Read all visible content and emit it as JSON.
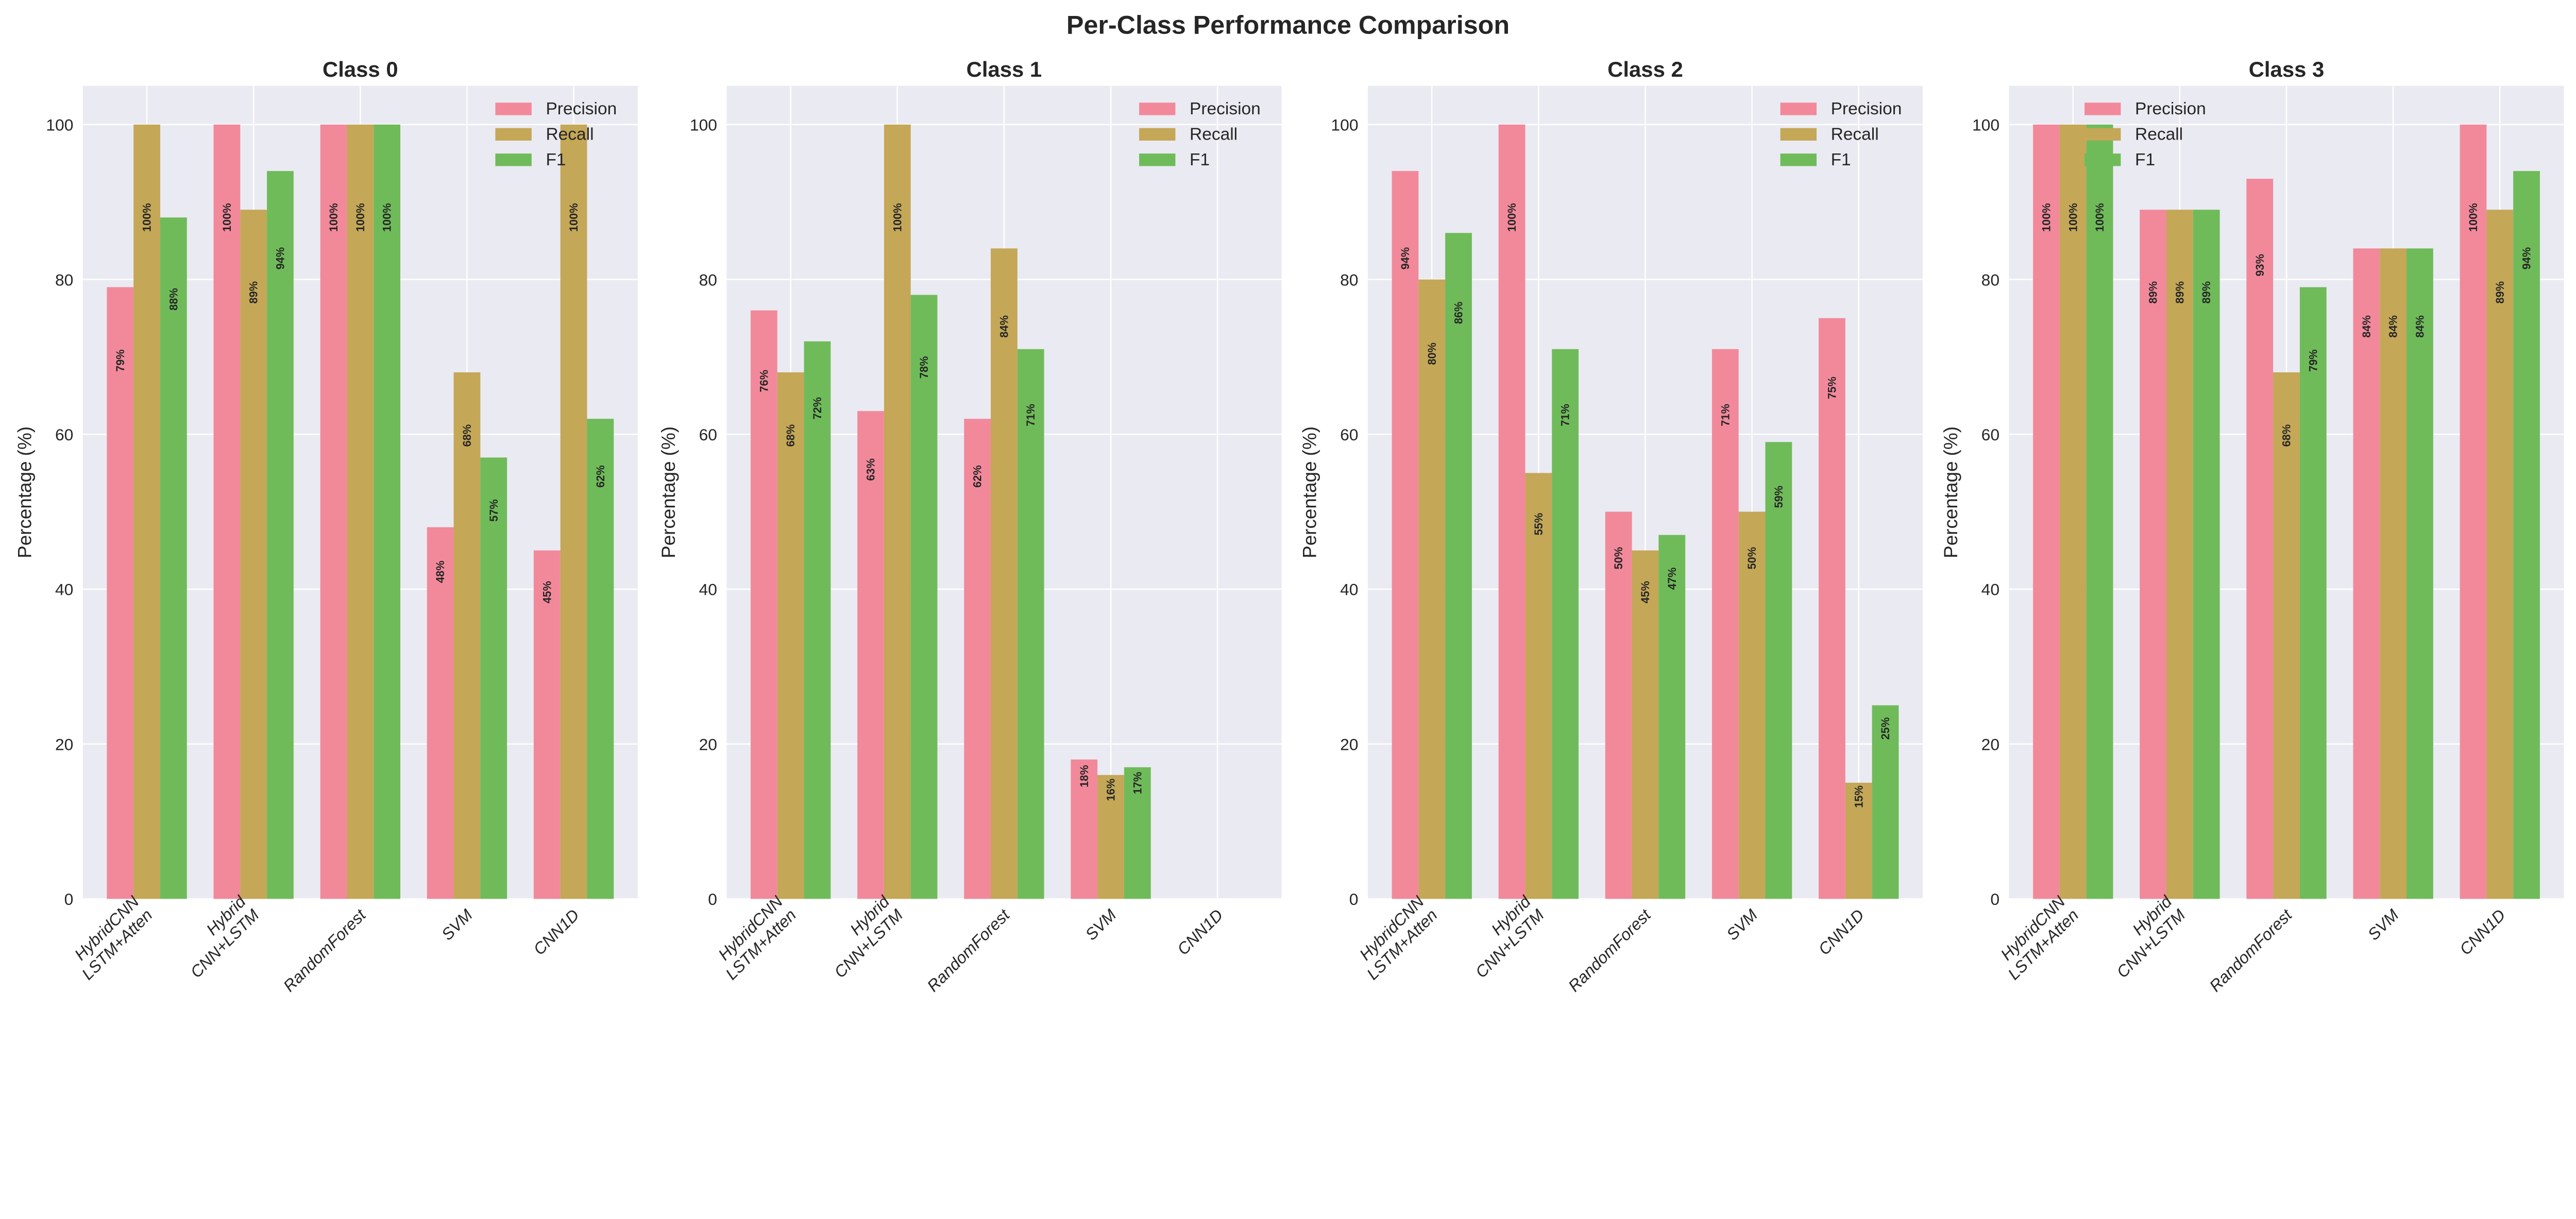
{
  "title": "Per-Class Performance Comparison",
  "colors": {
    "Precision": "#f2899b",
    "Recall": "#c4a757",
    "F1": "#6fbb5a",
    "background": "#eaeaf2",
    "grid": "#ffffff"
  },
  "chart_data": [
    {
      "type": "bar",
      "title": "Class 0",
      "xlabel": "",
      "ylabel": "Percentage (%)",
      "ylim": [
        0,
        105
      ],
      "yticks": [
        "0",
        "20",
        "40",
        "60",
        "80",
        "100"
      ],
      "grid": true,
      "legend": "top-right",
      "categories": [
        "HybridCNN\nLSTM+Atten",
        "Hybrid\nCNN+LSTM",
        "RandomForest",
        "SVM",
        "CNN1D"
      ],
      "series": [
        {
          "name": "Precision",
          "values": [
            79,
            100,
            100,
            48,
            45
          ]
        },
        {
          "name": "Recall",
          "values": [
            100,
            89,
            100,
            68,
            100
          ]
        },
        {
          "name": "F1",
          "values": [
            88,
            94,
            100,
            57,
            62
          ]
        }
      ]
    },
    {
      "type": "bar",
      "title": "Class 1",
      "xlabel": "",
      "ylabel": "Percentage (%)",
      "ylim": [
        0,
        105
      ],
      "yticks": [
        "0",
        "20",
        "40",
        "60",
        "80",
        "100"
      ],
      "grid": true,
      "legend": "top-right",
      "categories": [
        "HybridCNN\nLSTM+Atten",
        "Hybrid\nCNN+LSTM",
        "RandomForest",
        "SVM",
        "CNN1D"
      ],
      "series": [
        {
          "name": "Precision",
          "values": [
            76,
            63,
            62,
            18,
            0
          ]
        },
        {
          "name": "Recall",
          "values": [
            68,
            100,
            84,
            16,
            0
          ]
        },
        {
          "name": "F1",
          "values": [
            72,
            78,
            71,
            17,
            0
          ]
        }
      ]
    },
    {
      "type": "bar",
      "title": "Class 2",
      "xlabel": "",
      "ylabel": "Percentage (%)",
      "ylim": [
        0,
        105
      ],
      "yticks": [
        "0",
        "20",
        "40",
        "60",
        "80",
        "100"
      ],
      "grid": true,
      "legend": "top-right",
      "categories": [
        "HybridCNN\nLSTM+Atten",
        "Hybrid\nCNN+LSTM",
        "RandomForest",
        "SVM",
        "CNN1D"
      ],
      "series": [
        {
          "name": "Precision",
          "values": [
            94,
            100,
            50,
            71,
            75
          ]
        },
        {
          "name": "Recall",
          "values": [
            80,
            55,
            45,
            50,
            15
          ]
        },
        {
          "name": "F1",
          "values": [
            86,
            71,
            47,
            59,
            25
          ]
        }
      ]
    },
    {
      "type": "bar",
      "title": "Class 3",
      "xlabel": "",
      "ylabel": "Percentage (%)",
      "ylim": [
        0,
        105
      ],
      "yticks": [
        "0",
        "20",
        "40",
        "60",
        "80",
        "100"
      ],
      "grid": true,
      "legend": "top-center",
      "categories": [
        "HybridCNN\nLSTM+Atten",
        "Hybrid\nCNN+LSTM",
        "RandomForest",
        "SVM",
        "CNN1D"
      ],
      "series": [
        {
          "name": "Precision",
          "values": [
            100,
            89,
            93,
            84,
            100
          ]
        },
        {
          "name": "Recall",
          "values": [
            100,
            89,
            68,
            84,
            89
          ]
        },
        {
          "name": "F1",
          "values": [
            100,
            89,
            79,
            84,
            94
          ]
        }
      ]
    }
  ]
}
